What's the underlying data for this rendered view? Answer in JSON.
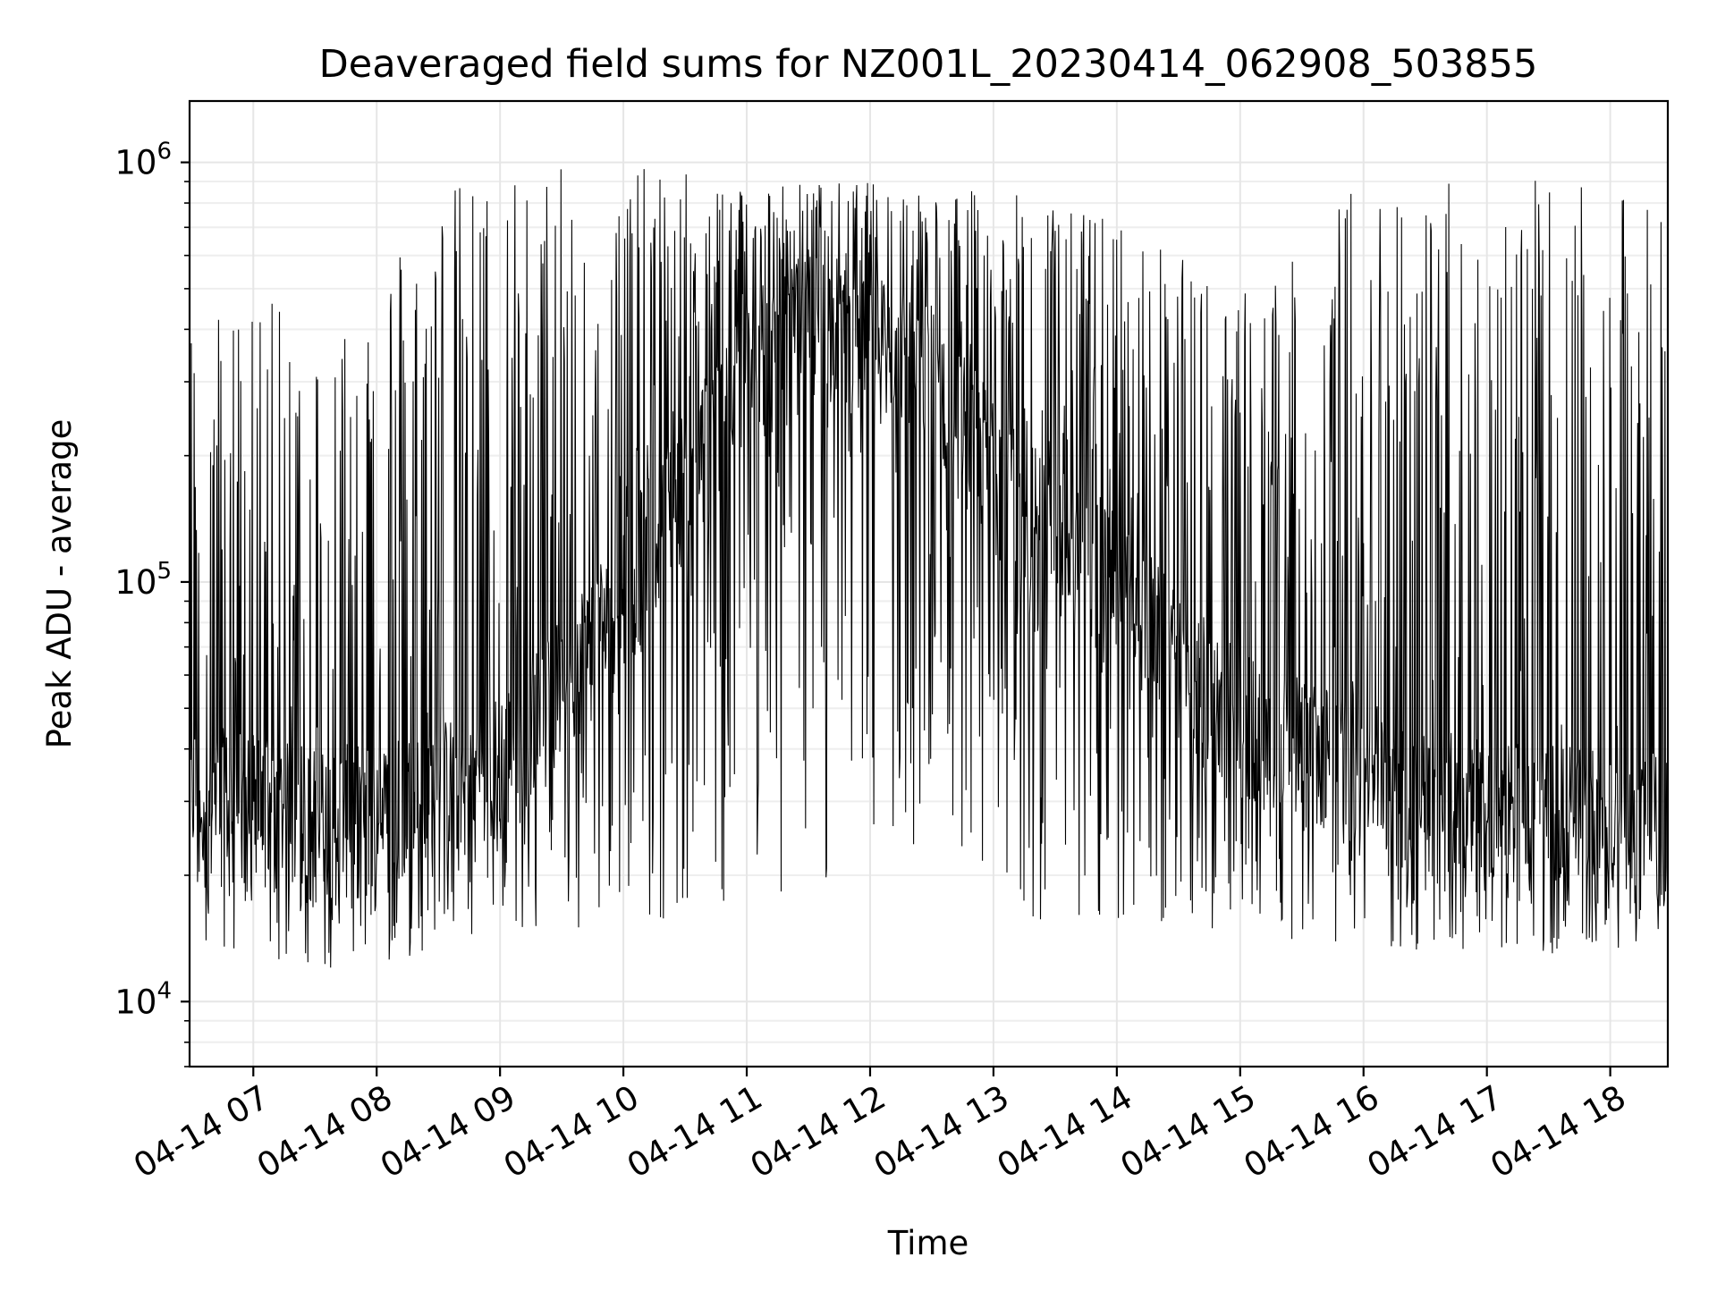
{
  "chart_data": {
    "type": "line",
    "title": "Deaveraged field sums for NZ001L_20230414_062908_503855",
    "xlabel": "Time",
    "ylabel": "Peak ADU - average",
    "yscale": "log",
    "ylim": [
      7000,
      1400000
    ],
    "xlim": [
      "2023-04-14 06:29",
      "2023-04-14 18:28"
    ],
    "grid": true,
    "legend": "none",
    "x_tick_labels": [
      "04-14 07",
      "04-14 08",
      "04-14 09",
      "04-14 10",
      "04-14 11",
      "04-14 12",
      "04-14 13",
      "04-14 14",
      "04-14 15",
      "04-14 16",
      "04-14 17",
      "04-14 18"
    ],
    "x_ticks": [
      "2023-04-14 07:00",
      "2023-04-14 08:00",
      "2023-04-14 09:00",
      "2023-04-14 10:00",
      "2023-04-14 11:00",
      "2023-04-14 12:00",
      "2023-04-14 13:00",
      "2023-04-14 14:00",
      "2023-04-14 15:00",
      "2023-04-14 16:00",
      "2023-04-14 17:00",
      "2023-04-14 18:00"
    ],
    "y_ticks": [
      {
        "value": 10000,
        "base": "10",
        "exp": "4"
      },
      {
        "value": 100000,
        "base": "10",
        "exp": "5"
      },
      {
        "value": 1000000,
        "base": "10",
        "exp": "6"
      }
    ],
    "series": [
      {
        "color": "#000000",
        "x": [
          "2023-04-14 06:30",
          "2023-04-14 07:00",
          "2023-04-14 07:30",
          "2023-04-14 08:00",
          "2023-04-14 08:30",
          "2023-04-14 09:00",
          "2023-04-14 09:30",
          "2023-04-14 10:00",
          "2023-04-14 10:30",
          "2023-04-14 11:00",
          "2023-04-14 11:30",
          "2023-04-14 12:00",
          "2023-04-14 12:30",
          "2023-04-14 13:00",
          "2023-04-14 13:30",
          "2023-04-14 14:00",
          "2023-04-14 14:30",
          "2023-04-14 15:00",
          "2023-04-14 15:30",
          "2023-04-14 16:00",
          "2023-04-14 16:30",
          "2023-04-14 17:00",
          "2023-04-14 17:30",
          "2023-04-14 18:00",
          "2023-04-14 18:28"
        ],
        "baseline": [
          30000,
          28000,
          26000,
          27000,
          30000,
          35000,
          55000,
          90000,
          170000,
          300000,
          400000,
          380000,
          300000,
          180000,
          120000,
          100000,
          60000,
          45000,
          38000,
          35000,
          30000,
          28000,
          27000,
          26000,
          25000
        ],
        "low": [
          14000,
          13000,
          12000,
          12000,
          13000,
          14000,
          15000,
          15000,
          16000,
          17000,
          18000,
          18000,
          17000,
          16000,
          15000,
          15000,
          14000,
          14000,
          14000,
          13000,
          13000,
          13000,
          13000,
          13000,
          14000
        ],
        "high": [
          450000,
          500000,
          400000,
          600000,
          900000,
          950000,
          970000,
          980000,
          950000,
          920000,
          900000,
          900000,
          880000,
          850000,
          820000,
          750000,
          600000,
          500000,
          600000,
          1000000,
          900000,
          950000,
          900000,
          850000,
          800000
        ]
      }
    ]
  }
}
